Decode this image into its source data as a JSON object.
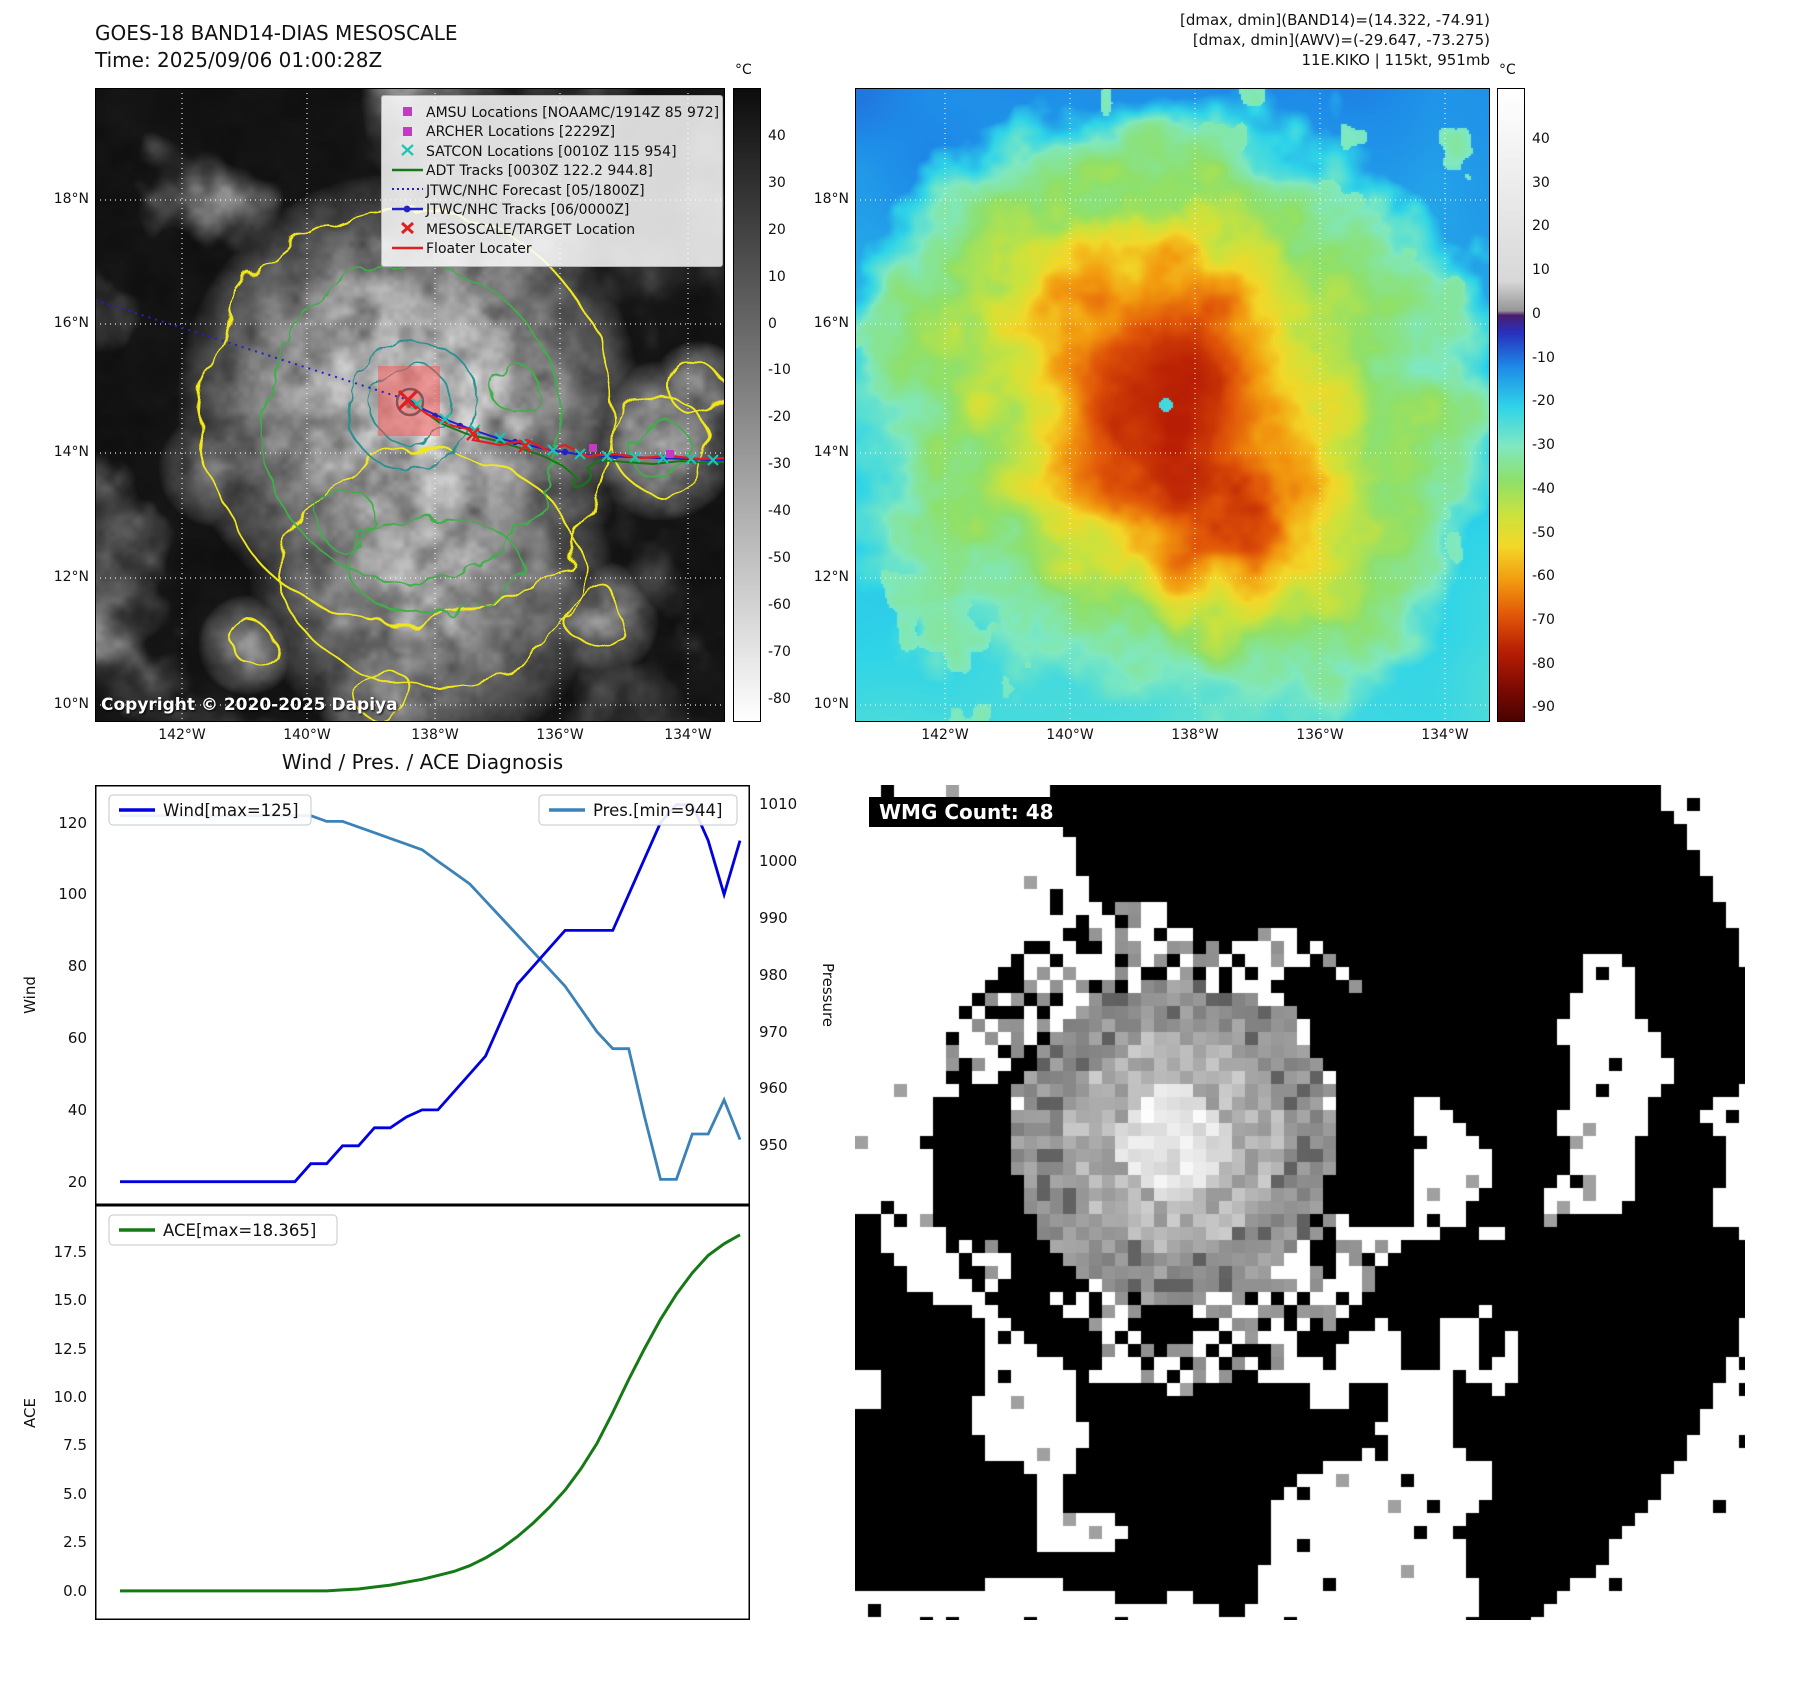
{
  "band14_panel": {
    "title_line1": "GOES-18 BAND14-DIAS MESOSCALE",
    "title_line2": "Time: 2025/09/06 01:00:28Z",
    "copyright": "Copyright © 2020-2025 Dapiya",
    "colorbar": {
      "unit": "°C",
      "ticks": [
        40,
        30,
        20,
        10,
        0,
        -10,
        -20,
        -30,
        -40,
        -50,
        -60,
        -70,
        -80
      ]
    },
    "lat_labels": [
      "18°N",
      "16°N",
      "14°N",
      "12°N",
      "10°N"
    ],
    "lon_labels": [
      "142°W",
      "140°W",
      "138°W",
      "136°W",
      "134°W"
    ],
    "legend_items": [
      {
        "marker": "square",
        "color": "#c23bc2",
        "label": "AMSU Locations [NOAAMC/1914Z 85 972]"
      },
      {
        "marker": "square",
        "color": "#c23bc2",
        "label": "ARCHER Locations [2229Z]"
      },
      {
        "marker": "x",
        "color": "#16c7b4",
        "label": "SATCON Locations [0010Z 115 954]"
      },
      {
        "marker": "line",
        "color": "#157a15",
        "label": "ADT Tracks [0030Z 122.2 944.8]"
      },
      {
        "marker": "dotted",
        "color": "#2222cc",
        "label": "JTWC/NHC Forecast [05/1800Z]"
      },
      {
        "marker": "line-dot",
        "color": "#2222cc",
        "label": "JTWC/NHC Tracks [06/0000Z]"
      },
      {
        "marker": "x-bold",
        "color": "#e02020",
        "label": "MESOSCALE/TARGET Location"
      },
      {
        "marker": "line",
        "color": "#e02020",
        "label": "Floater Locater"
      }
    ]
  },
  "awv_panel": {
    "header_line1": "[dmax, dmin](BAND14)=(14.322, -74.91)",
    "header_line2": "[dmax, dmin](AWV)=(-29.647, -73.275)",
    "header_line3": "11E.KIKO | 115kt, 951mb",
    "colorbar": {
      "unit": "°C",
      "ticks": [
        40,
        30,
        20,
        10,
        0,
        -10,
        -20,
        -30,
        -40,
        -50,
        -60,
        -70,
        -80,
        -90
      ]
    },
    "lat_labels": [
      "18°N",
      "16°N",
      "14°N",
      "12°N",
      "10°N"
    ],
    "lon_labels": [
      "142°W",
      "140°W",
      "138°W",
      "136°W",
      "134°W"
    ]
  },
  "diagnosis_panel": {
    "title": "Wind / Pres. / ACE Diagnosis",
    "ylabel_wind": "Wind",
    "ylabel_pressure": "Pressure",
    "ylabel_ace": "ACE"
  },
  "wmg_panel": {
    "label": "WMG Count: 48"
  },
  "chart_data": [
    {
      "type": "line",
      "title": "Wind / Pres. / ACE Diagnosis",
      "x": [
        0,
        1,
        2,
        3,
        4,
        5,
        6,
        7,
        8,
        9,
        10,
        11,
        12,
        13,
        14,
        15,
        16,
        17,
        18,
        19,
        20,
        21,
        22,
        23,
        24,
        25,
        26,
        27,
        28,
        29,
        30,
        31,
        32,
        33,
        34,
        35,
        36,
        37,
        38,
        39
      ],
      "series": [
        {
          "name": "Wind[max=125]",
          "axis": "left",
          "color": "#0000e0",
          "values": [
            20,
            20,
            20,
            20,
            20,
            20,
            20,
            20,
            20,
            20,
            20,
            20,
            25,
            25,
            30,
            30,
            35,
            35,
            38,
            40,
            40,
            45,
            50,
            55,
            65,
            75,
            80,
            85,
            90,
            90,
            90,
            90,
            100,
            110,
            120,
            125,
            125,
            115,
            100,
            115
          ]
        },
        {
          "name": "Pres.[min=944]",
          "axis": "right",
          "color": "#3b82b8",
          "values": [
            1008,
            1008,
            1008,
            1008,
            1008,
            1008,
            1008,
            1008,
            1008,
            1008,
            1008,
            1008,
            1008,
            1007,
            1007,
            1006,
            1005,
            1004,
            1003,
            1002,
            1000,
            998,
            996,
            993,
            990,
            987,
            984,
            981,
            978,
            974,
            970,
            967,
            967,
            955,
            944,
            944,
            952,
            952,
            958,
            951
          ]
        }
      ],
      "ylabel_left": "Wind",
      "ylabel_right": "Pressure",
      "yticks_left": [
        20,
        40,
        60,
        80,
        100,
        120
      ],
      "yticks_right": [
        950,
        960,
        970,
        980,
        990,
        1000,
        1010
      ],
      "ylim_left": [
        13.5,
        130.5
      ],
      "ylim_right": [
        939.5,
        1013.4
      ],
      "grid": false,
      "legend_position": "upper-left and upper-right"
    },
    {
      "type": "line",
      "x": [
        0,
        1,
        2,
        3,
        4,
        5,
        6,
        7,
        8,
        9,
        10,
        11,
        12,
        13,
        14,
        15,
        16,
        17,
        18,
        19,
        20,
        21,
        22,
        23,
        24,
        25,
        26,
        27,
        28,
        29,
        30,
        31,
        32,
        33,
        34,
        35,
        36,
        37,
        38,
        39
      ],
      "series": [
        {
          "name": "ACE[max=18.365]",
          "color": "#157a15",
          "values": [
            0,
            0,
            0,
            0,
            0,
            0,
            0,
            0,
            0,
            0,
            0,
            0,
            0,
            0,
            0.05,
            0.1,
            0.2,
            0.3,
            0.45,
            0.6,
            0.8,
            1.0,
            1.3,
            1.7,
            2.2,
            2.8,
            3.5,
            4.3,
            5.2,
            6.3,
            7.6,
            9.2,
            10.9,
            12.5,
            14.0,
            15.3,
            16.4,
            17.3,
            17.9,
            18.365
          ]
        }
      ],
      "ylabel": "ACE",
      "yticks": [
        "0.0",
        "2.5",
        "5.0",
        "7.5",
        "10.0",
        "12.5",
        "15.0",
        "17.5"
      ],
      "ylim": [
        -1.5,
        19.9
      ],
      "grid": false,
      "legend_position": "upper-left"
    }
  ]
}
